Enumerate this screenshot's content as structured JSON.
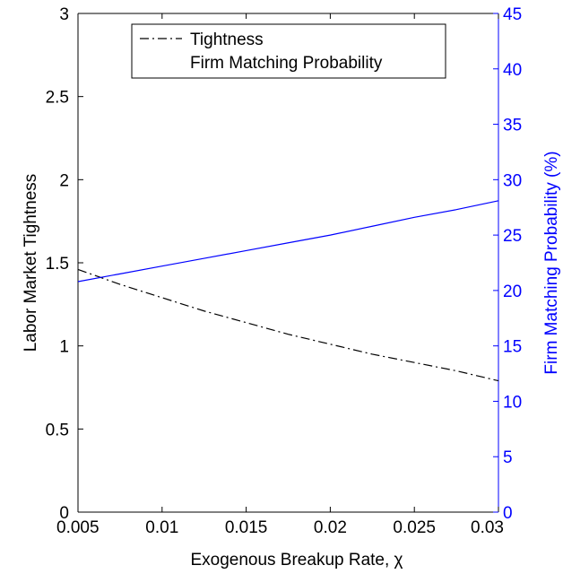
{
  "chart_data": {
    "type": "line",
    "xlabel": "Exogenous Breakup Rate, χ",
    "ylabel_left": "Labor Market Tightness",
    "ylabel_right": "Firm Matching Probability (%)",
    "xlim": [
      0.005,
      0.03
    ],
    "ylim_left": [
      0,
      3
    ],
    "ylim_right": [
      0,
      45
    ],
    "x_ticks": [
      "0.005",
      "0.01",
      "0.015",
      "0.02",
      "0.025",
      "0.03"
    ],
    "y_left_ticks": [
      "0",
      "0.5",
      "1",
      "1.5",
      "2",
      "2.5",
      "3"
    ],
    "y_right_ticks": [
      "0",
      "5",
      "10",
      "15",
      "20",
      "25",
      "30",
      "35",
      "40",
      "45"
    ],
    "grid": false,
    "legend_position": "top-center",
    "series": [
      {
        "name": "Tightness",
        "axis": "left",
        "style": "dash-dot",
        "color": "#000000",
        "x": [
          0.005,
          0.0075,
          0.01,
          0.0125,
          0.015,
          0.0175,
          0.02,
          0.0225,
          0.025,
          0.0275,
          0.03
        ],
        "y": [
          1.46,
          1.37,
          1.29,
          1.21,
          1.14,
          1.07,
          1.01,
          0.95,
          0.9,
          0.85,
          0.79
        ]
      },
      {
        "name": "Firm Matching Probability",
        "axis": "right",
        "style": "solid",
        "color": "#0000ff",
        "x": [
          0.005,
          0.0075,
          0.01,
          0.0125,
          0.015,
          0.0175,
          0.02,
          0.0225,
          0.025,
          0.0275,
          0.03
        ],
        "y": [
          20.8,
          21.5,
          22.2,
          22.9,
          23.6,
          24.3,
          25.0,
          25.8,
          26.6,
          27.3,
          28.1
        ]
      }
    ]
  }
}
